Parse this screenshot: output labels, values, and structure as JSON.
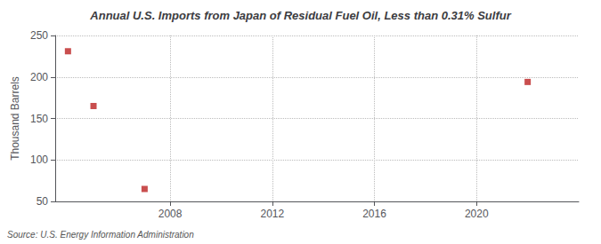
{
  "chart_data": {
    "type": "scatter",
    "title": "Annual U.S. Imports from Japan of Residual Fuel Oil, Less than 0.31% Sulfur",
    "ylabel": "Thousand Barrels",
    "annotations": [
      "Source: U.S. Energy Information Administration"
    ],
    "x": [
      2004,
      2005,
      2007,
      2022
    ],
    "values": [
      231,
      165,
      65,
      194
    ],
    "color": "#bb2222",
    "marker": "square",
    "xlim": [
      2003.5,
      2024
    ],
    "ylim": [
      50,
      250
    ],
    "xticks": [
      2008,
      2012,
      2016,
      2020
    ],
    "yticks": [
      50,
      100,
      150,
      200,
      250
    ],
    "grid": true
  }
}
